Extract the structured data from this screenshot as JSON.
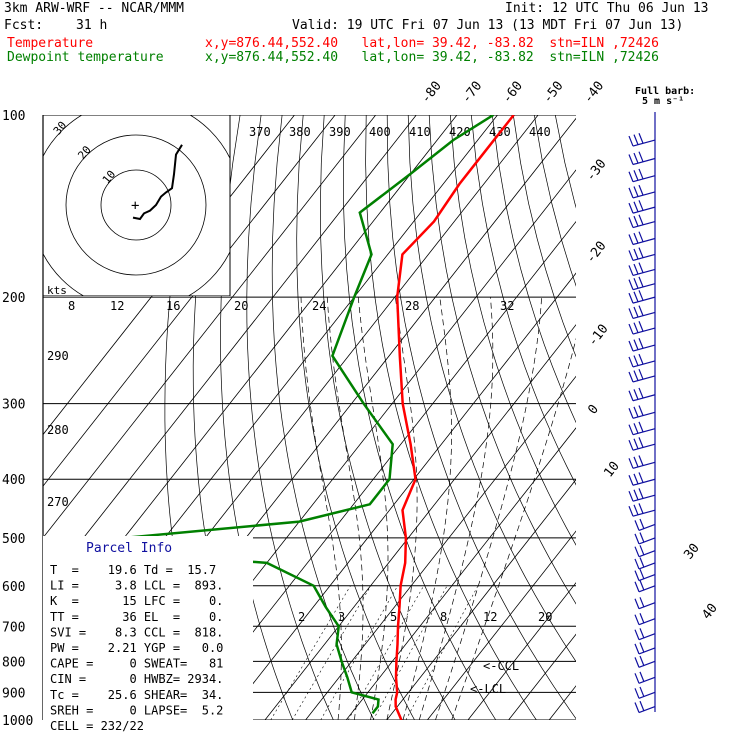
{
  "header": {
    "line1_left": "3km ARW-WRF -- NCAR/MMM",
    "line1_right": "Init: 12 UTC Thu 06 Jun 13",
    "fcst_label": "Fcst:",
    "fcst_value": "31 h",
    "valid": "Valid: 19 UTC Fri 07 Jun 13 (13 MDT Fri 07 Jun 13)",
    "temp_label": "Temperature",
    "temp_info": "x,y=876.44,552.40   lat,lon= 39.42, -83.82  stn=ILN ,72426",
    "dew_label": "Dewpoint temperature",
    "dew_info": "x,y=876.44,552.40   lat,lon= 39.42, -83.82  stn=ILN ,72426"
  },
  "colors": {
    "temperature": "#ff0000",
    "dewpoint": "#008000",
    "wind_barbs": "#1010a0",
    "grid": "#000000",
    "hodograph": "#000000"
  },
  "chart_data": {
    "type": "skew-t",
    "pressure_ticks": [
      "100",
      "200",
      "300",
      "400",
      "500",
      "600",
      "700",
      "800",
      "900",
      "1000"
    ],
    "isotherm_labels_top": [
      "-80",
      "-70",
      "-60",
      "-50",
      "-40"
    ],
    "isotherm_labels_right": [
      "-30",
      "-20",
      "-10",
      "0",
      "10",
      "30",
      "40"
    ],
    "theta_labels": [
      "370",
      "380",
      "390",
      "400",
      "410",
      "420",
      "430",
      "440"
    ],
    "theta_labels_left": [
      "290",
      "280",
      "270"
    ],
    "hodo_speed_labels": [
      "8",
      "12",
      "16",
      "20",
      "24",
      "28",
      "32"
    ],
    "hodo_ring_labels": [
      "10",
      "20",
      "30"
    ],
    "hodo_unit": "kts",
    "mixing_ratio_labels": [
      "2",
      "3",
      "5",
      "8",
      "12",
      "20"
    ],
    "ccl_label": "<-CCL",
    "lcl_label": "<-LCL",
    "barb_note_title": "Full barb:",
    "barb_note_value": "5 m s⁻¹",
    "temperature_profile": [
      {
        "p": 1000,
        "t": 23.6
      },
      {
        "p": 950,
        "t": 19.6
      },
      {
        "p": 925,
        "t": 18.2
      },
      {
        "p": 900,
        "t": 17.2
      },
      {
        "p": 850,
        "t": 14.0
      },
      {
        "p": 800,
        "t": 11.0
      },
      {
        "p": 750,
        "t": 8.0
      },
      {
        "p": 700,
        "t": 4.6
      },
      {
        "p": 650,
        "t": 1.2
      },
      {
        "p": 600,
        "t": -2.6
      },
      {
        "p": 550,
        "t": -5.9
      },
      {
        "p": 500,
        "t": -10.6
      },
      {
        "p": 450,
        "t": -16.8
      },
      {
        "p": 400,
        "t": -19.6
      },
      {
        "p": 350,
        "t": -27.6
      },
      {
        "p": 300,
        "t": -37.4
      },
      {
        "p": 250,
        "t": -47.4
      },
      {
        "p": 200,
        "t": -59.4
      },
      {
        "p": 170,
        "t": -66.4
      },
      {
        "p": 150,
        "t": -65.0
      },
      {
        "p": 130,
        "t": -66.0
      },
      {
        "p": 115,
        "t": -66.0
      },
      {
        "p": 100,
        "t": -66.0
      }
    ],
    "dewpoint_profile": [
      {
        "p": 975,
        "t": 15.2
      },
      {
        "p": 950,
        "t": 15.2
      },
      {
        "p": 925,
        "t": 14.0
      },
      {
        "p": 900,
        "t": 6.0
      },
      {
        "p": 850,
        "t": 2.0
      },
      {
        "p": 800,
        "t": -2.5
      },
      {
        "p": 750,
        "t": -7.0
      },
      {
        "p": 700,
        "t": -10.0
      },
      {
        "p": 650,
        "t": -17.0
      },
      {
        "p": 600,
        "t": -24.0
      },
      {
        "p": 550,
        "t": -40.0
      },
      {
        "p": 520,
        "t": -90.0
      },
      {
        "p": 500,
        "t": -80.0
      },
      {
        "p": 470,
        "t": -40.0
      },
      {
        "p": 440,
        "t": -26.0
      },
      {
        "p": 400,
        "t": -26.0
      },
      {
        "p": 350,
        "t": -32.0
      },
      {
        "p": 300,
        "t": -47.0
      },
      {
        "p": 250,
        "t": -64.0
      },
      {
        "p": 200,
        "t": -70.0
      },
      {
        "p": 170,
        "t": -74.0
      },
      {
        "p": 145,
        "t": -85.0
      },
      {
        "p": 125,
        "t": -80.0
      },
      {
        "p": 110,
        "t": -76.0
      },
      {
        "p": 100,
        "t": -71.0
      }
    ],
    "wind_barbs_levels": [
      110,
      118,
      126,
      134,
      142,
      150,
      160,
      170,
      180,
      190,
      200,
      212,
      225,
      240,
      255,
      270,
      290,
      310,
      330,
      350,
      375,
      400,
      425,
      450,
      475,
      500,
      525,
      550,
      575,
      600,
      640,
      680,
      720,
      760,
      800,
      850,
      900,
      950
    ],
    "hodograph_path": [
      {
        "u": -0.3,
        "v": -0.9
      },
      {
        "u": 0.4,
        "v": -1.0
      },
      {
        "u": 0.8,
        "v": -0.6
      },
      {
        "u": 1.4,
        "v": -0.4
      },
      {
        "u": 2.0,
        "v": 0.0
      },
      {
        "u": 2.5,
        "v": 0.6
      },
      {
        "u": 3.0,
        "v": 0.9
      },
      {
        "u": 3.6,
        "v": 1.2
      },
      {
        "u": 3.8,
        "v": 2.2
      },
      {
        "u": 4.0,
        "v": 3.6
      },
      {
        "u": 4.6,
        "v": 4.3
      }
    ]
  },
  "parcel": {
    "title": "Parcel Info",
    "rows": [
      "T  =    19.6 Td =  15.7",
      "LI =     3.8 LCL =  893.",
      "K  =      15 LFC =    0.",
      "TT =      36 EL  =    0.",
      "SVI =    8.3 CCL =  818.",
      "PW =    2.21 YGP =   0.0",
      "CAPE =     0 SWEAT=   81",
      "CIN =      0 HWBZ= 2934.",
      "Tc =    25.6 SHEAR=  34.",
      "SREH =     0 LAPSE=  5.2",
      "CELL = 232/22"
    ]
  }
}
